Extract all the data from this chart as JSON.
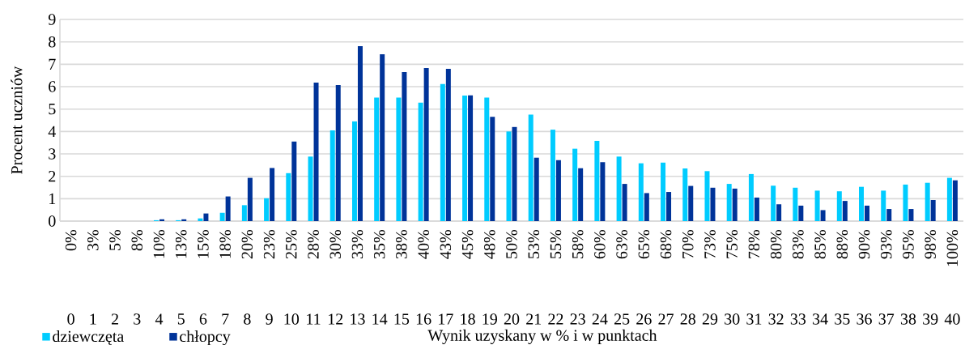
{
  "chart_data": {
    "type": "bar",
    "xlabel": "Wynik uzyskany w % i w punktach",
    "ylabel": "Procent uczniów",
    "categories": [
      "0%",
      "3%",
      "5%",
      "8%",
      "10%",
      "13%",
      "15%",
      "18%",
      "20%",
      "23%",
      "25%",
      "28%",
      "30%",
      "33%",
      "35%",
      "38%",
      "40%",
      "43%",
      "45%",
      "48%",
      "50%",
      "53%",
      "55%",
      "58%",
      "60%",
      "63%",
      "65%",
      "68%",
      "70%",
      "73%",
      "75%",
      "78%",
      "80%",
      "83%",
      "85%",
      "88%",
      "90%",
      "93%",
      "95%",
      "98%",
      "100%"
    ],
    "series": [
      {
        "name": "dziewczęta",
        "color": "#00ccff",
        "values": [
          0,
          0,
          0,
          0,
          0.04,
          0.04,
          0.12,
          0.37,
          0.71,
          1.02,
          2.14,
          2.88,
          4.05,
          4.45,
          5.51,
          5.51,
          5.29,
          6.12,
          5.6,
          5.51,
          4.0,
          4.75,
          4.08,
          3.23,
          3.58,
          2.88,
          2.58,
          2.61,
          2.35,
          2.23,
          1.66,
          2.1,
          1.58,
          1.49,
          1.36,
          1.33,
          1.53,
          1.36,
          1.63,
          1.71,
          1.93
        ]
      },
      {
        "name": "chłopcy",
        "color": "#003399",
        "values": [
          0,
          0,
          0,
          0,
          0.08,
          0.08,
          0.34,
          1.1,
          1.93,
          2.37,
          3.55,
          6.18,
          6.07,
          7.81,
          7.45,
          6.65,
          6.83,
          6.8,
          5.61,
          4.65,
          4.2,
          2.83,
          2.72,
          2.36,
          2.63,
          1.66,
          1.25,
          1.3,
          1.57,
          1.49,
          1.45,
          1.05,
          0.75,
          0.69,
          0.49,
          0.9,
          0.69,
          0.54,
          0.54,
          0.94,
          1.82
        ]
      }
    ],
    "ylim": [
      0,
      9
    ],
    "yticks": [
      0,
      1,
      2,
      3,
      4,
      5,
      6,
      7,
      8,
      9
    ],
    "grid": "y",
    "legend": "bottom left",
    "annotations": [
      "0",
      "1",
      "2",
      "3",
      "4",
      "5",
      "6",
      "7",
      "8",
      "9",
      "10",
      "11",
      "12",
      "13",
      "14",
      "15",
      "16",
      "17",
      "18",
      "19",
      "20",
      "21",
      "22",
      "23",
      "24",
      "25",
      "26",
      "27",
      "28",
      "29",
      "30",
      "31",
      "32",
      "33",
      "34",
      "35",
      "36",
      "37",
      "38",
      "39",
      "40"
    ]
  }
}
